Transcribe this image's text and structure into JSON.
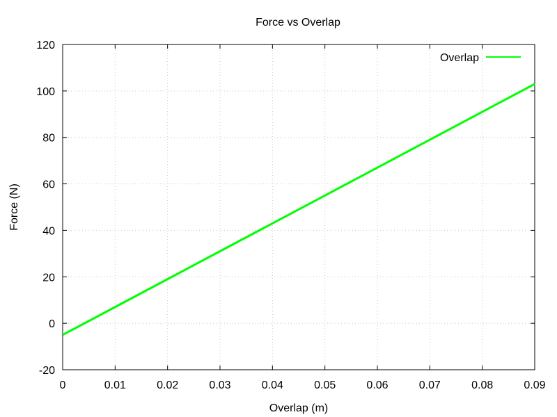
{
  "chart_data": {
    "type": "line",
    "title": "Force vs Overlap",
    "xlabel": "Overlap (m)",
    "ylabel": "Force (N)",
    "xlim": [
      0,
      0.09
    ],
    "ylim": [
      -20,
      120
    ],
    "xticks": [
      "0",
      "0.01",
      "0.02",
      "0.03",
      "0.04",
      "0.05",
      "0.06",
      "0.07",
      "0.08",
      "0.09"
    ],
    "yticks": [
      "-20",
      "0",
      "20",
      "40",
      "60",
      "80",
      "100",
      "120"
    ],
    "grid": true,
    "legend": "top-right",
    "series": [
      {
        "name": "Overlap",
        "color": "#00ff00",
        "x": [
          0,
          0.01,
          0.02,
          0.03,
          0.04,
          0.05,
          0.06,
          0.07,
          0.08,
          0.09
        ],
        "y": [
          -5,
          7,
          19,
          31,
          43,
          55,
          67,
          79,
          91,
          103
        ]
      }
    ]
  }
}
